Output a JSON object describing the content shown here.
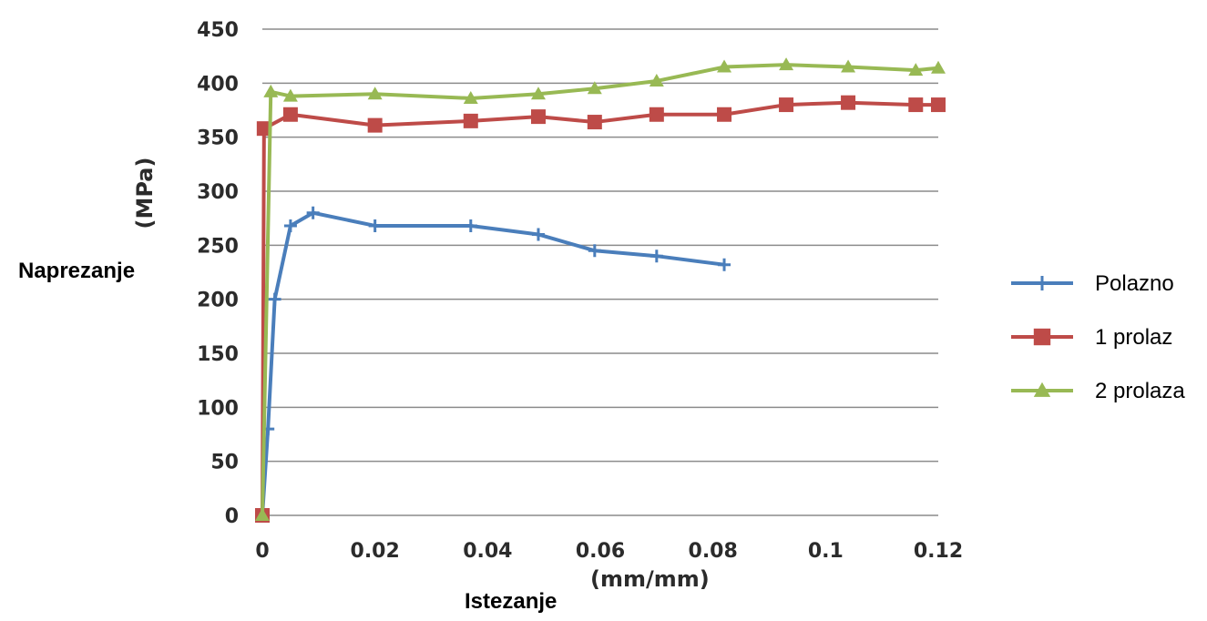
{
  "chart_data": {
    "type": "line",
    "xlabel": "Istezanje",
    "xunit": "(mm/mm)",
    "ylabel": "Naprezanje",
    "yunit": "(MPa)",
    "xlim": [
      0,
      0.12
    ],
    "ylim": [
      0,
      450
    ],
    "xticks": [
      "0",
      "0.02",
      "0.04",
      "0.06",
      "0.08",
      "0.1",
      "0.12"
    ],
    "yticks": [
      "0",
      "50",
      "100",
      "150",
      "200",
      "250",
      "300",
      "350",
      "400",
      "450"
    ],
    "grid": "horizontal",
    "legend_position": "right",
    "series": [
      {
        "name": "Polazno",
        "color": "#4a7ebb",
        "marker": "plus",
        "x": [
          0,
          0.001,
          0.0022,
          0.005,
          0.009,
          0.02,
          0.037,
          0.049,
          0.059,
          0.07,
          0.082
        ],
        "y": [
          0,
          80,
          200,
          268,
          280,
          268,
          268,
          260,
          245,
          240,
          232
        ]
      },
      {
        "name": "1 prolaz",
        "color": "#be4b48",
        "marker": "square",
        "x": [
          0,
          0.0003,
          0.005,
          0.02,
          0.037,
          0.049,
          0.059,
          0.07,
          0.082,
          0.093,
          0.104,
          0.116,
          0.12
        ],
        "y": [
          0,
          358,
          371,
          361,
          365,
          369,
          364,
          371,
          371,
          380,
          382,
          380,
          380
        ]
      },
      {
        "name": "2 prolaza",
        "color": "#98b954",
        "marker": "triangle",
        "x": [
          0,
          0.0015,
          0.005,
          0.02,
          0.037,
          0.049,
          0.059,
          0.07,
          0.082,
          0.093,
          0.104,
          0.116,
          0.12
        ],
        "y": [
          0,
          392,
          388,
          390,
          386,
          390,
          395,
          402,
          415,
          417,
          415,
          412,
          414
        ]
      }
    ]
  }
}
